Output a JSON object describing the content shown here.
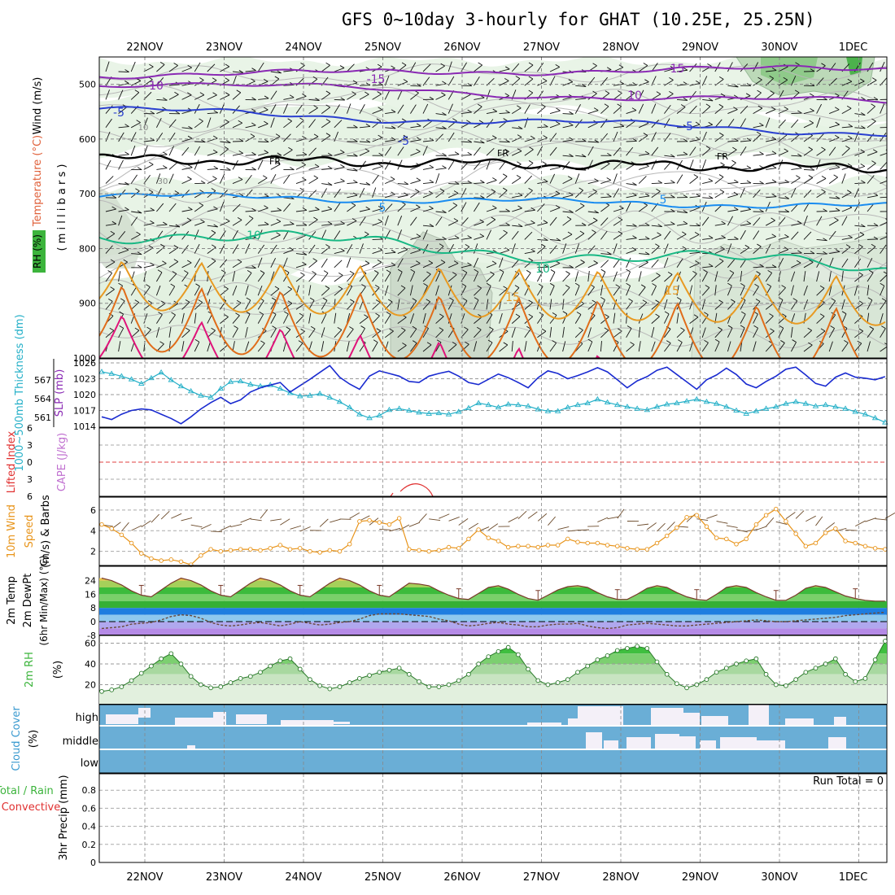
{
  "title": "GFS 0~10day 3-hourly for GHAT (10.25E, 25.25N)",
  "dates": [
    "22NOV",
    "23NOV",
    "24NOV",
    "25NOV",
    "26NOV",
    "27NOV",
    "28NOV",
    "29NOV",
    "30NOV",
    "1DEC"
  ],
  "colors": {
    "temp_label": "#e0603a",
    "rh_green": "#3cb43c",
    "purple": "#8a2ab4",
    "blue": "#2a3fd0",
    "lightblue": "#1a8cf0",
    "teal": "#18b884",
    "orange": "#e89a22",
    "darkorange": "#e06d1a",
    "magenta": "#e0147a",
    "thickness": "#25b0c8",
    "slp": "#1a2bd0",
    "wind": "#e8941a",
    "cloud": "#6aaed6",
    "cloud_clear": "#f4f0f8"
  },
  "panels": {
    "upper": {
      "ylabel_wind": "Wind (m/s)",
      "ylabel_temp": "Temperature (°C)",
      "ylabel_rh": "RH (%)",
      "ylabel_unit": "( m i l l i b a r s )",
      "y_ticks": [
        "500",
        "600",
        "700",
        "800",
        "900",
        "1000"
      ],
      "contour_labels": {
        "m10": "10",
        "m15": "-15",
        "m5": "-5",
        "fr": "FR",
        "p5": "5",
        "p10": "10",
        "p15": "15",
        "rh10": "10",
        "rh30": "30"
      }
    },
    "thickness": {
      "ylabel_thk": "1000~500mb Thickness (dm)",
      "ylabel_slp": "SLP (mb)",
      "left_ticks": [
        "567",
        "564",
        "561"
      ],
      "right_ticks": [
        "1026",
        "1023",
        "1020",
        "1017",
        "1014"
      ]
    },
    "cape": {
      "ylabel_li": "Lifted Index",
      "ylabel_cape": "CAPE (J/kg)",
      "ticks": [
        "6",
        "3",
        "0",
        "3",
        "6"
      ]
    },
    "wind10": {
      "ylabel_1": "10m Wind",
      "ylabel_2": "Speed",
      "ylabel_3": "(m/s) & Barbs",
      "ticks": [
        "6",
        "4",
        "2"
      ]
    },
    "temp2m": {
      "ylabel_1": "2m Temp",
      "ylabel_2": "2m DewPt",
      "ylabel_3": "(6hr Min/Max) (°C)",
      "ticks": [
        "24",
        "16",
        "8",
        "0",
        "-8"
      ]
    },
    "rh2m": {
      "ylabel_1": "2m RH",
      "ylabel_2": "(%)",
      "ticks": [
        "60",
        "40",
        "20"
      ]
    },
    "cloud": {
      "ylabel_1": "Cloud Cover",
      "ylabel_2": "(%)",
      "levels": [
        "high",
        "middle",
        "low"
      ]
    },
    "precip": {
      "ylabel_1": "Total / Rain",
      "ylabel_2": "Convective",
      "ylabel_3": "3hr Precip (mm)",
      "ticks": [
        "0.8",
        "0.6",
        "0.4",
        "0.2",
        "0"
      ],
      "run_total": "Run Total = 0"
    }
  },
  "chart_data": [
    {
      "type": "line",
      "name": "thickness",
      "x_unit": "3-hour steps from 21NOV 12Z",
      "series": [
        {
          "name": "1000~500mb Thickness (dm)",
          "values": [
            568.3,
            568.0,
            567.6,
            567.1,
            566.4,
            567.3,
            568.2,
            567.0,
            566.0,
            565.2,
            564.5,
            564.2,
            565.6,
            566.7,
            566.8,
            566.3,
            566.0,
            566.2,
            565.6,
            564.9,
            564.4,
            564.5,
            564.8,
            564.2,
            563.5,
            562.6,
            561.5,
            560.9,
            561.3,
            562.2,
            562.4,
            562.1,
            561.8,
            561.6,
            561.7,
            561.5,
            561.9,
            562.5,
            563.3,
            563.0,
            562.6,
            563.1,
            563.0,
            562.8,
            562.3,
            562.0,
            562.0,
            562.6,
            563.0,
            563.3,
            563.9,
            563.4,
            563.0,
            562.7,
            562.4,
            562.2,
            562.7,
            563.1,
            563.3,
            563.6,
            563.9,
            563.5,
            563.2,
            562.7,
            562.1,
            561.6,
            562.0,
            562.4,
            562.7,
            563.2,
            563.5,
            563.2,
            562.8,
            563.0,
            562.7,
            562.4,
            561.9,
            561.5,
            560.9,
            560.2
          ]
        },
        {
          "name": "SLP (mb)",
          "values": [
            1015.8,
            1015.3,
            1016.3,
            1017.0,
            1017.3,
            1017.1,
            1016.3,
            1015.5,
            1014.5,
            1015.8,
            1017.3,
            1018.5,
            1019.5,
            1018.3,
            1019.0,
            1020.5,
            1021.3,
            1021.8,
            1022.3,
            1020.5,
            1021.7,
            1022.9,
            1024.2,
            1025.5,
            1023.3,
            1022.0,
            1021.0,
            1023.5,
            1024.5,
            1024.0,
            1023.5,
            1022.5,
            1022.3,
            1023.5,
            1024.0,
            1024.4,
            1023.5,
            1022.3,
            1021.9,
            1022.9,
            1023.9,
            1023.2,
            1022.3,
            1021.3,
            1023.2,
            1024.5,
            1024.0,
            1023.0,
            1023.6,
            1024.3,
            1025.1,
            1024.3,
            1022.8,
            1021.3,
            1022.6,
            1023.4,
            1024.6,
            1025.2,
            1023.8,
            1022.4,
            1021.0,
            1022.8,
            1023.7,
            1025.0,
            1023.8,
            1022.0,
            1021.3,
            1022.5,
            1023.5,
            1024.8,
            1025.2,
            1023.7,
            1022.1,
            1021.6,
            1023.3,
            1024.1,
            1023.3,
            1023.1,
            1022.8,
            1023.4
          ]
        }
      ],
      "left_axis": {
        "label": "1000~500mb Thickness (dm)",
        "ticks": [
          567,
          564,
          561
        ]
      },
      "right_axis": {
        "label": "SLP (mb)",
        "ticks": [
          1026,
          1023,
          1020,
          1017,
          1014
        ]
      }
    },
    {
      "type": "line",
      "name": "wind10m",
      "series": [
        {
          "name": "10m Wind Speed (m/s)",
          "values": [
            4.6,
            4.2,
            3.6,
            2.8,
            1.8,
            1.3,
            1.1,
            1.2,
            1.0,
            0.7,
            1.6,
            2.2,
            2.0,
            2.1,
            2.2,
            2.2,
            2.1,
            2.3,
            2.6,
            2.2,
            2.3,
            2.0,
            1.9,
            2.1,
            2.0,
            2.7,
            4.9,
            5.0,
            4.8,
            4.6,
            5.2,
            2.2,
            2.1,
            2.0,
            2.1,
            2.4,
            2.3,
            3.2,
            4.1,
            3.3,
            3.0,
            2.4,
            2.5,
            2.5,
            2.4,
            2.6,
            2.6,
            3.2,
            2.9,
            2.8,
            2.8,
            2.6,
            2.5,
            2.3,
            2.2,
            2.2,
            2.8,
            3.5,
            4.3,
            5.3,
            5.5,
            4.4,
            3.3,
            3.2,
            2.7,
            3.2,
            4.6,
            5.5,
            6.1,
            4.9,
            3.7,
            2.5,
            2.8,
            3.8,
            4.2,
            3.0,
            2.8,
            2.5,
            2.3,
            2.2
          ]
        }
      ],
      "y_ticks": [
        6,
        4,
        2
      ]
    },
    {
      "type": "area",
      "name": "temp2m",
      "series": [
        {
          "name": "2m Temp (°C)",
          "values": [
            25.5,
            24.0,
            21.5,
            18.0,
            15.5,
            14.5,
            18.5,
            22.5,
            25.5,
            24.0,
            21.5,
            18.0,
            15.5,
            14.5,
            18.5,
            22.5,
            25.5,
            24.0,
            21.5,
            18.0,
            15.5,
            14.5,
            18.5,
            22.5,
            25.5,
            24.0,
            21.5,
            18.0,
            15.5,
            14.5,
            18.5,
            22.5,
            22.0,
            21.0,
            18.0,
            15.5,
            13.5,
            13.0,
            16.5,
            20.0,
            21.0,
            19.0,
            16.0,
            13.5,
            12.5,
            15.5,
            18.5,
            20.5,
            21.0,
            20.0,
            17.0,
            14.5,
            13.0,
            13.0,
            16.0,
            19.5,
            21.0,
            20.0,
            17.0,
            14.5,
            13.0,
            12.5,
            16.0,
            20.0,
            21.0,
            20.0,
            17.0,
            14.5,
            12.5,
            12.5,
            15.5,
            19.5,
            21.0,
            20.0,
            17.5,
            15.0,
            13.5,
            12.5,
            12.0,
            12.0
          ]
        },
        {
          "name": "2m DewPt (°C)",
          "values": [
            -4.0,
            -3.5,
            -3.0,
            -1.5,
            -1.0,
            -0.5,
            1.0,
            3.0,
            4.0,
            3.5,
            2.0,
            -0.5,
            -2.0,
            -2.5,
            -2.0,
            -1.0,
            -0.5,
            -1.5,
            -2.5,
            -1.5,
            0.0,
            -1.0,
            -2.0,
            -1.5,
            -0.5,
            0.0,
            1.5,
            3.5,
            4.5,
            4.5,
            4.5,
            4.0,
            3.5,
            3.0,
            1.5,
            0.5,
            -1.5,
            -2.5,
            -2.0,
            -1.0,
            -0.5,
            -1.5,
            -2.0,
            -3.0,
            -3.0,
            -2.0,
            -1.5,
            -1.5,
            -1.0,
            -2.5,
            -3.5,
            -4.0,
            -3.5,
            -2.0,
            -1.5,
            -1.0,
            -1.5,
            -2.0,
            -2.5,
            -2.5,
            -2.0,
            -1.5,
            -1.0,
            -0.5,
            0.0,
            0.5,
            1.0,
            0.5,
            0.0,
            0.0,
            0.5,
            1.0,
            1.5,
            2.0,
            2.5,
            3.5,
            4.0,
            4.5,
            5.0,
            5.5
          ]
        }
      ],
      "y_ticks": [
        24,
        16,
        8,
        0,
        -8
      ]
    },
    {
      "type": "area",
      "name": "rh2m",
      "series": [
        {
          "name": "2m RH (%)",
          "values": [
            13.5,
            15.0,
            18.0,
            24.0,
            31.0,
            38.0,
            45.0,
            50.0,
            40.0,
            28.0,
            20.0,
            17.0,
            18.0,
            22.0,
            26.0,
            28.0,
            32.0,
            38.0,
            43.0,
            45.0,
            35.0,
            25.0,
            19.0,
            16.0,
            18.0,
            22.0,
            26.0,
            29.0,
            32.0,
            34.0,
            36.0,
            30.0,
            23.0,
            18.0,
            18.0,
            20.0,
            24.0,
            30.0,
            40.0,
            47.0,
            52.0,
            56.0,
            49.0,
            35.0,
            24.0,
            20.0,
            22.0,
            25.0,
            32.0,
            38.0,
            44.0,
            48.0,
            53.0,
            55.0,
            57.0,
            55.0,
            42.0,
            30.0,
            21.0,
            17.0,
            20.0,
            25.0,
            32.0,
            36.0,
            40.0,
            43.0,
            45.0,
            30.0,
            20.0,
            19.0,
            25.0,
            32.0,
            36.0,
            40.0,
            45.0,
            30.0,
            23.0,
            26.0,
            44.0,
            62.0
          ]
        }
      ],
      "y_ticks": [
        60,
        40,
        20
      ]
    },
    {
      "type": "heatmap",
      "name": "cloud_cover",
      "levels": [
        "high",
        "middle",
        "low"
      ],
      "y_label": "Cloud Cover (%)"
    },
    {
      "type": "bar",
      "name": "precip_3hr",
      "y_label": "3hr Precip (mm)",
      "y_ticks": [
        0.8,
        0.6,
        0.4,
        0.2,
        0
      ],
      "annotation": "Run Total = 0"
    }
  ]
}
